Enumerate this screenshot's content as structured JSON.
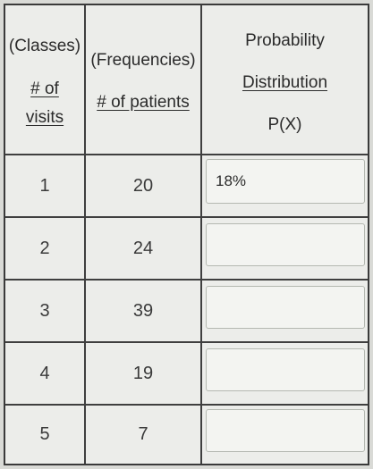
{
  "headers": {
    "col1": {
      "line1": "(Classes)",
      "line2": "# of",
      "line3": "visits"
    },
    "col2": {
      "line1": "(Frequencies)",
      "line2": "# of patients"
    },
    "col3": {
      "line1": "Probability",
      "line2": "Distribution",
      "line3": "P(X)"
    }
  },
  "rows": [
    {
      "visits": "1",
      "patients": "20",
      "probability": "18%"
    },
    {
      "visits": "2",
      "patients": "24",
      "probability": ""
    },
    {
      "visits": "3",
      "patients": "39",
      "probability": ""
    },
    {
      "visits": "4",
      "patients": "19",
      "probability": ""
    },
    {
      "visits": "5",
      "patients": "7",
      "probability": ""
    }
  ]
}
